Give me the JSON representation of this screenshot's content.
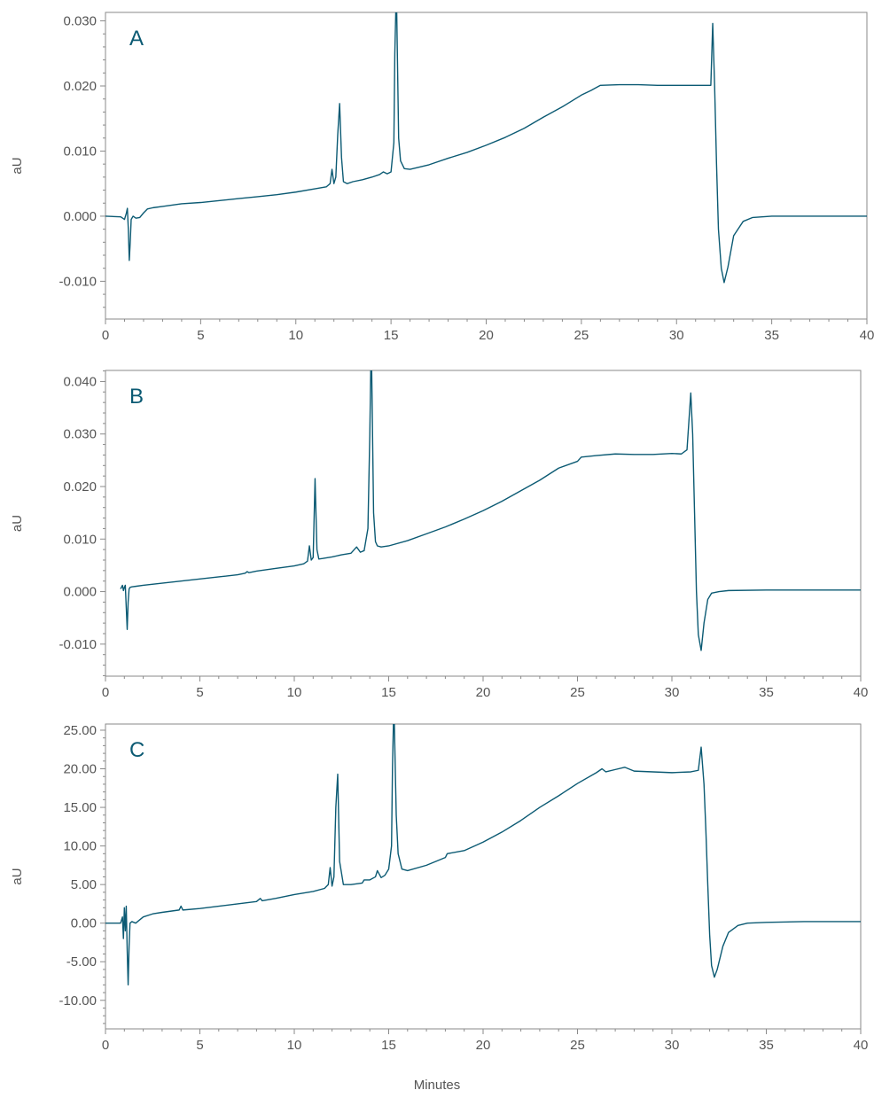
{
  "colors": {
    "trace": "#0b5a73",
    "axis": "#8a8a8a",
    "text": "#555555"
  },
  "chart_data": [
    {
      "type": "line",
      "panel_label": "A",
      "xlabel": "",
      "ylabel": "aU",
      "xlim": [
        0,
        40
      ],
      "ylim": [
        -0.0158,
        0.0313
      ],
      "xticks": [
        0,
        5,
        10,
        15,
        20,
        25,
        30,
        35,
        40
      ],
      "xtick_labels": [
        "0",
        "5",
        "10",
        "15",
        "20",
        "25",
        "30",
        "35",
        "40"
      ],
      "yticks": [
        0.03,
        0.02,
        0.01,
        0.0,
        -0.01
      ],
      "ytick_labels": [
        "0.030",
        "0.020",
        "0.010",
        "0.000",
        "-0.010"
      ],
      "series": [
        {
          "x": [
            0,
            0.8,
            1.0,
            1.1,
            1.15,
            1.2,
            1.25,
            1.3,
            1.35,
            1.45,
            1.6,
            1.8,
            2.0,
            2.2,
            2.5,
            3,
            4,
            5,
            6,
            7,
            8,
            9,
            10,
            11,
            11.6,
            11.8,
            11.9,
            12.0,
            12.1,
            12.2,
            12.3,
            12.4,
            12.5,
            12.7,
            13,
            13.5,
            14,
            14.4,
            14.6,
            14.8,
            15.0,
            15.15,
            15.2,
            15.25,
            15.3,
            15.4,
            15.5,
            15.7,
            16,
            17,
            18,
            19,
            20,
            21,
            22,
            23,
            24,
            25,
            25.5,
            26,
            27,
            28,
            29,
            30,
            31,
            31.5,
            31.8,
            31.9,
            32.0,
            32.1,
            32.2,
            32.35,
            32.5,
            32.7,
            33,
            33.5,
            34,
            35,
            37,
            40
          ],
          "y": [
            0.0,
            -0.0001,
            -0.0005,
            0.0005,
            0.0012,
            -0.002,
            -0.0068,
            -0.004,
            -0.0005,
            0.0,
            -0.0003,
            -0.0002,
            0.0005,
            0.0011,
            0.0013,
            0.0015,
            0.0019,
            0.0021,
            0.0024,
            0.0027,
            0.003,
            0.0033,
            0.0037,
            0.0042,
            0.0045,
            0.005,
            0.0072,
            0.005,
            0.006,
            0.0125,
            0.0173,
            0.009,
            0.0053,
            0.005,
            0.0053,
            0.0056,
            0.006,
            0.0064,
            0.0068,
            0.0065,
            0.0068,
            0.0113,
            0.025,
            0.0313,
            0.0313,
            0.012,
            0.0085,
            0.0073,
            0.0072,
            0.0079,
            0.0089,
            0.0098,
            0.0109,
            0.0121,
            0.0135,
            0.0152,
            0.0168,
            0.0186,
            0.0193,
            0.0201,
            0.0202,
            0.0202,
            0.0201,
            0.0201,
            0.0201,
            0.0201,
            0.0201,
            0.0296,
            0.02,
            0.008,
            -0.002,
            -0.008,
            -0.0102,
            -0.0078,
            -0.003,
            -0.0008,
            -0.0002,
            0.0,
            0.0,
            0.0
          ]
        }
      ]
    },
    {
      "type": "line",
      "panel_label": "B",
      "xlabel": "",
      "ylabel": "aU",
      "xlim": [
        0,
        40
      ],
      "ylim": [
        -0.0161,
        0.0421
      ],
      "xticks": [
        0,
        5,
        10,
        15,
        20,
        25,
        30,
        35,
        40
      ],
      "xtick_labels": [
        "0",
        "5",
        "10",
        "15",
        "20",
        "25",
        "30",
        "35",
        "40"
      ],
      "yticks": [
        0.04,
        0.03,
        0.02,
        0.01,
        0.0,
        -0.01
      ],
      "ytick_labels": [
        "0.040",
        "0.030",
        "0.020",
        "0.010",
        "0.000",
        "-0.010"
      ],
      "series": [
        {
          "x": [
            0.8,
            0.9,
            0.95,
            1.0,
            1.05,
            1.1,
            1.15,
            1.2,
            1.25,
            1.3,
            1.4,
            1.6,
            2,
            3,
            4,
            5,
            6,
            7,
            7.4,
            7.5,
            7.6,
            8,
            9,
            10,
            10.5,
            10.7,
            10.8,
            10.9,
            11.0,
            11.1,
            11.2,
            11.3,
            11.5,
            12,
            12.5,
            13,
            13.3,
            13.5,
            13.7,
            13.9,
            14.0,
            14.05,
            14.1,
            14.2,
            14.3,
            14.4,
            14.6,
            15,
            16,
            17,
            18,
            19,
            20,
            21,
            22,
            23,
            24,
            25,
            25.2,
            26,
            27,
            28,
            29,
            30,
            30.5,
            30.8,
            31.0,
            31.1,
            31.2,
            31.3,
            31.4,
            31.55,
            31.7,
            31.9,
            32.1,
            32.5,
            33,
            35,
            37,
            40
          ],
          "y": [
            0.0005,
            0.0012,
            0.0002,
            0.0008,
            0.0012,
            -0.003,
            -0.0072,
            -0.002,
            0.0005,
            0.0008,
            0.0009,
            0.001,
            0.0012,
            0.0016,
            0.002,
            0.0024,
            0.0028,
            0.0032,
            0.0035,
            0.0038,
            0.0036,
            0.0039,
            0.0044,
            0.0049,
            0.0053,
            0.0058,
            0.0087,
            0.006,
            0.0065,
            0.0215,
            0.008,
            0.0062,
            0.0063,
            0.0066,
            0.007,
            0.0073,
            0.0085,
            0.0075,
            0.0078,
            0.012,
            0.03,
            0.0421,
            0.0421,
            0.015,
            0.0095,
            0.0087,
            0.0085,
            0.0087,
            0.0097,
            0.011,
            0.0123,
            0.0138,
            0.0154,
            0.0172,
            0.0192,
            0.0212,
            0.0235,
            0.0248,
            0.0256,
            0.0259,
            0.0262,
            0.0261,
            0.0261,
            0.0263,
            0.0262,
            0.027,
            0.0378,
            0.03,
            0.015,
            0.0,
            -0.0082,
            -0.0112,
            -0.006,
            -0.0015,
            -0.0003,
            0.0,
            0.0002,
            0.0003,
            0.0003,
            0.0003
          ]
        }
      ]
    },
    {
      "type": "line",
      "panel_label": "C",
      "xlabel": "Minutes",
      "ylabel": "aU",
      "xlim": [
        0,
        40
      ],
      "ylim": [
        -13.7,
        25.8
      ],
      "xticks": [
        0,
        5,
        10,
        15,
        20,
        25,
        30,
        35,
        40
      ],
      "xtick_labels": [
        "0",
        "5",
        "10",
        "15",
        "20",
        "25",
        "30",
        "35",
        "40"
      ],
      "yticks": [
        25,
        20,
        15,
        10,
        5,
        0,
        -5,
        -10
      ],
      "ytick_labels": [
        "25.00",
        "20.00",
        "15.00",
        "10.00",
        "5.00",
        "0.00",
        "-5.00",
        "-10.00"
      ],
      "series": [
        {
          "x": [
            0,
            0.8,
            0.9,
            0.95,
            1.0,
            1.05,
            1.1,
            1.15,
            1.2,
            1.25,
            1.3,
            1.4,
            1.6,
            1.8,
            2,
            2.5,
            3,
            3.9,
            4.0,
            4.1,
            5,
            6,
            7,
            8,
            8.2,
            8.3,
            9,
            10,
            11,
            11.6,
            11.8,
            11.9,
            12.0,
            12.1,
            12.2,
            12.3,
            12.4,
            12.6,
            13,
            13.6,
            13.7,
            14,
            14.3,
            14.4,
            14.6,
            14.8,
            15.0,
            15.15,
            15.2,
            15.25,
            15.3,
            15.4,
            15.5,
            15.7,
            16,
            17,
            18,
            18.1,
            19,
            20,
            21,
            22,
            23,
            24,
            25,
            26,
            26.3,
            26.5,
            27,
            27.5,
            28,
            29,
            30,
            31,
            31.4,
            31.55,
            31.7,
            31.8,
            31.9,
            32.0,
            32.1,
            32.25,
            32.4,
            32.7,
            33,
            33.5,
            34,
            35,
            37,
            40
          ],
          "y": [
            0.0,
            0.0,
            0.8,
            -2.0,
            2.0,
            -1.0,
            2.2,
            -3.5,
            -8.0,
            -3.0,
            0.0,
            0.2,
            0.0,
            0.4,
            0.8,
            1.2,
            1.4,
            1.7,
            2.2,
            1.7,
            1.9,
            2.2,
            2.5,
            2.8,
            3.2,
            2.9,
            3.2,
            3.7,
            4.1,
            4.5,
            5.0,
            7.2,
            4.8,
            6.0,
            15.0,
            19.3,
            8.0,
            5.0,
            5.0,
            5.2,
            5.6,
            5.6,
            6.0,
            6.8,
            5.9,
            6.2,
            7.0,
            10.0,
            20.0,
            25.8,
            25.8,
            14.0,
            9.0,
            7.0,
            6.8,
            7.5,
            8.5,
            9.0,
            9.4,
            10.5,
            11.8,
            13.3,
            15.0,
            16.5,
            18.1,
            19.5,
            20.0,
            19.6,
            19.9,
            20.2,
            19.7,
            19.6,
            19.5,
            19.6,
            19.8,
            22.8,
            18.0,
            12.0,
            5.0,
            -1.5,
            -5.5,
            -7.0,
            -6.0,
            -3.0,
            -1.2,
            -0.3,
            0.0,
            0.1,
            0.2,
            0.2
          ]
        }
      ]
    }
  ]
}
